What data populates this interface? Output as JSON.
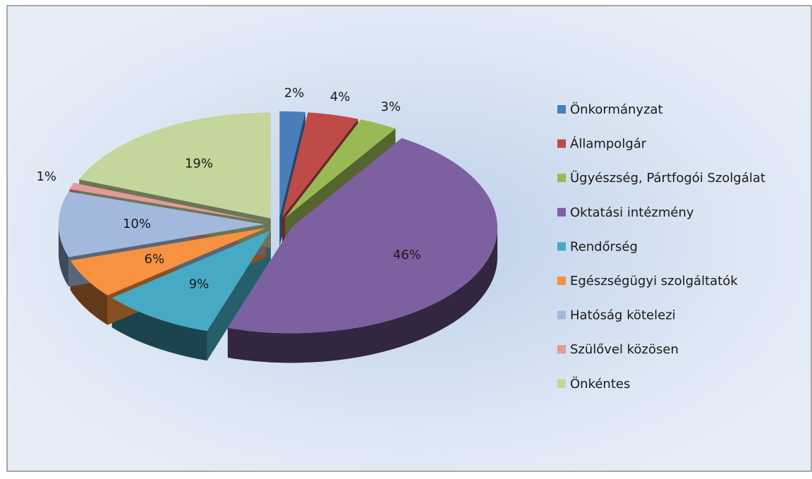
{
  "chart_data": {
    "type": "pie",
    "categories": [
      "Önkormányzat",
      "Állampolgár",
      "Ügyészség, Pártfogói Szolgálat",
      "Oktatási intézmény",
      "Rendőrség",
      "Egészségügyi szolgáltatók",
      "Hatóság kötelezi",
      "Szülővel közösen",
      "Önkéntes"
    ],
    "values": [
      2,
      4,
      3,
      46,
      9,
      6,
      10,
      1,
      19
    ],
    "value_labels": [
      "2%",
      "4%",
      "3%",
      "46%",
      "9%",
      "6%",
      "10%",
      "1%",
      "19%"
    ],
    "colors": [
      "#4a7ebb",
      "#be4b48",
      "#98b954",
      "#7d60a0",
      "#46aac5",
      "#f69240",
      "#a2b8dc",
      "#e39a98",
      "#c3d69b"
    ],
    "legend": "right"
  }
}
